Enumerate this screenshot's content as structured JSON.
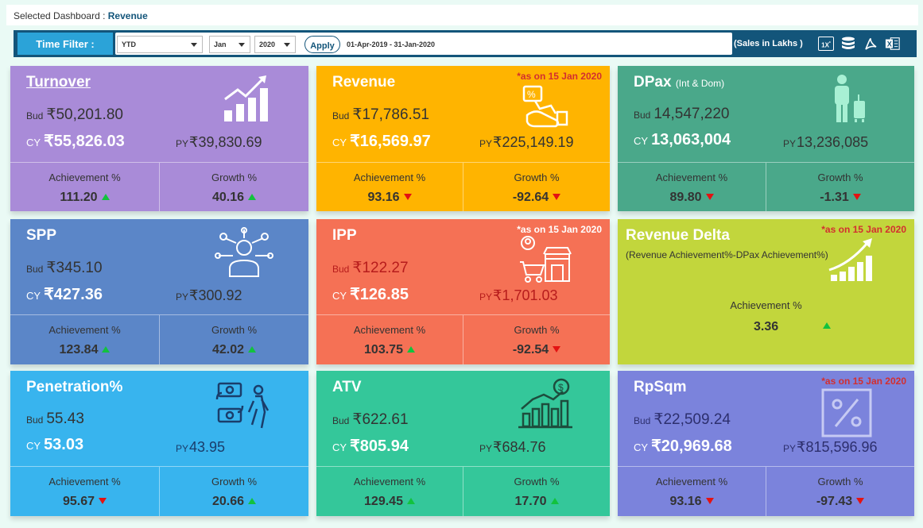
{
  "header": {
    "label": "Selected Dashboard :",
    "dashboard": "Revenue"
  },
  "filter": {
    "label": "Time Filter :",
    "period": "YTD",
    "month": "Jan",
    "year": "2020",
    "apply_label": "Apply",
    "date_range": "01-Apr-2019 - 31-Jan-2020",
    "units": "(Sales in Lakhs )",
    "icons": [
      "multiplier-icon",
      "database-icon",
      "pdf-icon",
      "excel-icon"
    ],
    "multiplier_text": "1X"
  },
  "labels": {
    "bud": "Bud",
    "cy": "CY",
    "py": "PY",
    "achievement": "Achievement %",
    "growth": "Growth %"
  },
  "cards": {
    "turnover": {
      "title": "Turnover",
      "bud": "₹50,201.80",
      "cy": "₹55,826.03",
      "py": "₹39,830.69",
      "achievement": "111.20",
      "growth": "40.16",
      "ach_trend": "up",
      "growth_trend": "up",
      "color": "#a98bd8",
      "icon": "bar-chart-growth-icon"
    },
    "revenue": {
      "title": "Revenue",
      "note": "*as on 15 Jan 2020",
      "bud": "₹17,786.51",
      "cy": "₹16,569.97",
      "py": "₹225,149.19",
      "achievement": "93.16",
      "growth": "-92.64",
      "ach_trend": "down",
      "growth_trend": "down",
      "color": "#ffb400",
      "icon": "discount-hand-icon"
    },
    "dpax": {
      "title": "DPax",
      "title_sub": "(Int & Dom)",
      "bud": "14,547,220",
      "cy": "13,063,004",
      "py": "13,236,085",
      "achievement": "89.80",
      "growth": "-1.31",
      "ach_trend": "down",
      "growth_trend": "down",
      "color": "#4aa88a",
      "icon": "traveler-luggage-icon"
    },
    "spp": {
      "title": "SPP",
      "bud": "₹345.10",
      "cy": "₹427.36",
      "py": "₹300.92",
      "achievement": "123.84",
      "growth": "42.02",
      "ach_trend": "up",
      "growth_trend": "up",
      "color": "#5b86c8",
      "icon": "person-network-icon"
    },
    "ipp": {
      "title": "IPP",
      "note": "*as on 15 Jan 2020",
      "bud": "₹122.27",
      "cy": "₹126.85",
      "py": "₹1,701.03",
      "achievement": "103.75",
      "growth": "-92.54",
      "ach_trend": "up",
      "growth_trend": "down",
      "color": "#f57155",
      "icon": "shopping-store-icon"
    },
    "delta": {
      "title": "Revenue Delta",
      "subtitle": "(Revenue Achievement%-DPax Achievement%)",
      "note": "*as on 15 Jan 2020",
      "achievement": "3.36",
      "ach_trend": "up",
      "color": "#c2d63c",
      "icon": "growth-arrow-icon"
    },
    "penetration": {
      "title": "Penetration%",
      "bud": "55.43",
      "cy": "53.03",
      "py": "43.95",
      "achievement": "95.67",
      "growth": "20.66",
      "ach_trend": "down",
      "growth_trend": "up",
      "color": "#38b4ee",
      "icon": "cash-exchange-person-icon"
    },
    "atv": {
      "title": "ATV",
      "bud": "₹622.61",
      "cy": "₹805.94",
      "py": "₹684.76",
      "achievement": "129.45",
      "growth": "17.70",
      "ach_trend": "up",
      "growth_trend": "up",
      "color": "#34c79a",
      "icon": "dollar-chart-icon"
    },
    "rpsqm": {
      "title": "RpSqm",
      "note": "*as on 15 Jan 2020",
      "bud": "₹22,509.24",
      "cy": "₹20,969.68",
      "py": "₹815,596.96",
      "achievement": "93.16",
      "growth": "-97.43",
      "ach_trend": "down",
      "growth_trend": "down",
      "color": "#7b83dc",
      "icon": "percent-box-icon"
    }
  }
}
